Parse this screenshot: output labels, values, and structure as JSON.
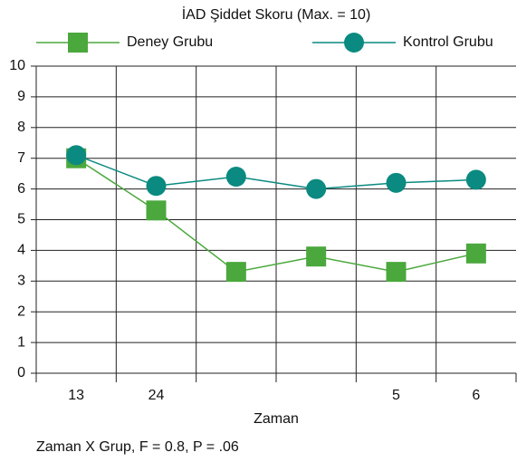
{
  "chart_data": {
    "type": "line",
    "title": "İAD Şiddet Skoru (Max. = 10)",
    "xlabel": "Zaman",
    "note": "Zaman X Grup, F = 0.8, P = .06",
    "categories": [
      "13",
      "24",
      null,
      null,
      "5",
      "6"
    ],
    "series": [
      {
        "name": "Deney Grubu",
        "color": "#4ba83d",
        "marker": "square",
        "values": [
          7.0,
          5.3,
          3.3,
          3.8,
          3.3,
          3.9
        ]
      },
      {
        "name": "Kontrol Grubu",
        "color": "#0a8a80",
        "marker": "circle",
        "values": [
          7.1,
          6.1,
          6.4,
          6.0,
          6.2,
          6.3
        ]
      }
    ],
    "ylim": [
      0,
      10
    ],
    "yticks": [
      0,
      1,
      2,
      3,
      4,
      5,
      6,
      7,
      8,
      9,
      10
    ],
    "grid": true
  }
}
